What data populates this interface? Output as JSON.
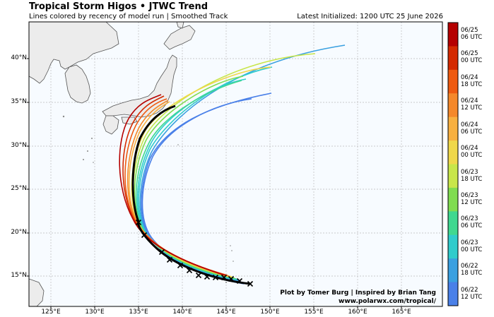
{
  "header": {
    "title": "Tropical Storm Higos • JTWC Trend",
    "subtitle": "Lines colored by recency of model run | Smoothed Track",
    "initialized": "Latest Initialized: 1200 UTC 25 June 2026"
  },
  "map": {
    "lat_labels": [
      "40°N",
      "35°N",
      "30°N",
      "25°N",
      "20°N",
      "15°N"
    ],
    "lon_labels": [
      "125°E",
      "130°E",
      "135°E",
      "140°E",
      "145°E",
      "150°E",
      "155°E",
      "160°E",
      "165°E"
    ],
    "land_color": "#ececec",
    "ocean_color": "#f7fbff",
    "latest_track_color": "#000000"
  },
  "colorbar": {
    "labels": [
      "06/25\n06 UTC",
      "06/25\n00 UTC",
      "06/24\n18 UTC",
      "06/24\n12 UTC",
      "06/24\n06 UTC",
      "06/24\n00 UTC",
      "06/23\n18 UTC",
      "06/23\n12 UTC",
      "06/23\n06 UTC",
      "06/23\n00 UTC",
      "06/22\n18 UTC",
      "06/22\n12 UTC"
    ],
    "colors": [
      "#b50000",
      "#d42a00",
      "#ee5a10",
      "#f5882a",
      "#f8b040",
      "#f0d84a",
      "#c8e64a",
      "#80dc50",
      "#40d890",
      "#30cccc",
      "#3aa0e0",
      "#4a80e8"
    ]
  },
  "credit": {
    "line1": "Plot by Tomer Burg | Inspired by Brian Tang",
    "line2": "www.polarwx.com/tropical/"
  }
}
